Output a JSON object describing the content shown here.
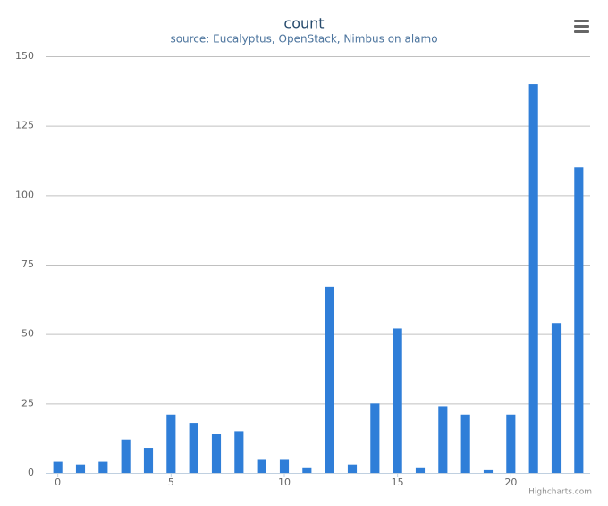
{
  "chart_data": {
    "type": "bar",
    "title": "count",
    "subtitle": "source: Eucalyptus, OpenStack, Nimbus on alamo",
    "x": [
      0,
      1,
      2,
      3,
      4,
      5,
      6,
      7,
      8,
      9,
      10,
      11,
      12,
      13,
      14,
      15,
      16,
      17,
      18,
      19,
      20,
      21,
      22,
      23
    ],
    "values": [
      4,
      3,
      4,
      12,
      9,
      21,
      18,
      14,
      15,
      5,
      5,
      2,
      67,
      3,
      25,
      52,
      2,
      24,
      21,
      1,
      21,
      140,
      54,
      110
    ],
    "color": "#2f7ed8",
    "xlim": [
      -0.5,
      23.5
    ],
    "xticks": [
      0,
      5,
      10,
      15,
      20
    ],
    "ylim": [
      0,
      150
    ],
    "yticks": [
      0,
      25,
      50,
      75,
      100,
      125,
      150
    ],
    "grid": true,
    "credits": "Highcharts.com"
  }
}
